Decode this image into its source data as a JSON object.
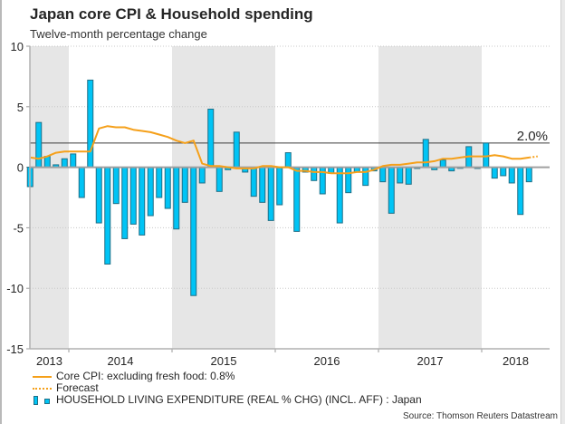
{
  "chart_data": {
    "type": "bar",
    "title": "Japan core CPI & Household spending",
    "subtitle": "Twelve-month percentage change",
    "xlabel": "",
    "ylabel": "",
    "ylim": [
      -15,
      10
    ],
    "yticks": [
      10,
      5,
      0,
      -5,
      -10,
      -15
    ],
    "ytick_labels": [
      "10",
      "5",
      "0",
      "-5",
      "-10",
      "-15"
    ],
    "grid": true,
    "x_start": "2013-08",
    "x_end": "2018-08",
    "years": [
      {
        "label": "2013",
        "shaded": true
      },
      {
        "label": "2014",
        "shaded": false
      },
      {
        "label": "2015",
        "shaded": true
      },
      {
        "label": "2016",
        "shaded": false
      },
      {
        "label": "2017",
        "shaded": true
      },
      {
        "label": "2018",
        "shaded": false
      }
    ],
    "months": [
      "2013-08",
      "2013-09",
      "2013-10",
      "2013-11",
      "2013-12",
      "2014-01",
      "2014-02",
      "2014-03",
      "2014-04",
      "2014-05",
      "2014-06",
      "2014-07",
      "2014-08",
      "2014-09",
      "2014-10",
      "2014-11",
      "2014-12",
      "2015-01",
      "2015-02",
      "2015-03",
      "2015-04",
      "2015-05",
      "2015-06",
      "2015-07",
      "2015-08",
      "2015-09",
      "2015-10",
      "2015-11",
      "2015-12",
      "2016-01",
      "2016-02",
      "2016-03",
      "2016-04",
      "2016-05",
      "2016-06",
      "2016-07",
      "2016-08",
      "2016-09",
      "2016-10",
      "2016-11",
      "2016-12",
      "2017-01",
      "2017-02",
      "2017-03",
      "2017-04",
      "2017-05",
      "2017-06",
      "2017-07",
      "2017-08",
      "2017-09",
      "2017-10",
      "2017-11",
      "2017-12",
      "2018-01",
      "2018-02",
      "2018-03",
      "2018-04",
      "2018-05",
      "2018-06"
    ],
    "series": [
      {
        "name": "HOUSEHOLD LIVING EXPENDITURE (REAL % CHG) (INCL. AFF) : Japan",
        "type": "bar",
        "color": "#00c4f5",
        "edge_color": "#1f6f86",
        "values": [
          -1.6,
          3.7,
          0.9,
          0.2,
          0.7,
          1.1,
          -2.5,
          7.2,
          -4.6,
          -8.0,
          -3.0,
          -5.9,
          -4.7,
          -5.6,
          -4.0,
          -2.5,
          -3.4,
          -5.1,
          -2.9,
          -10.6,
          -1.3,
          4.8,
          -2.0,
          -0.2,
          2.9,
          -0.4,
          -2.4,
          -2.9,
          -4.4,
          -3.1,
          1.2,
          -5.3,
          -0.4,
          -1.1,
          -2.2,
          -0.5,
          -4.6,
          -2.1,
          -0.4,
          -1.5,
          -0.3,
          -1.2,
          -3.8,
          -1.3,
          -1.4,
          -0.1,
          2.3,
          -0.2,
          0.6,
          -0.3,
          0.0,
          1.7,
          -0.1,
          2.0,
          -0.9,
          -0.7,
          -1.3,
          -3.9,
          -1.2
        ]
      },
      {
        "name": "Core CPI: excluding fresh food: 0.8%",
        "type": "line",
        "color": "#f5a01a",
        "values": [
          0.8,
          0.7,
          0.9,
          1.2,
          1.3,
          1.3,
          1.3,
          1.3,
          3.2,
          3.4,
          3.3,
          3.3,
          3.1,
          3.0,
          2.9,
          2.7,
          2.5,
          2.2,
          2.0,
          2.2,
          0.3,
          0.1,
          0.1,
          0.0,
          -0.1,
          -0.1,
          -0.1,
          0.1,
          0.1,
          0.0,
          0.0,
          -0.3,
          -0.3,
          -0.4,
          -0.4,
          -0.5,
          -0.5,
          -0.5,
          -0.4,
          -0.4,
          -0.2,
          0.1,
          0.2,
          0.2,
          0.3,
          0.4,
          0.4,
          0.5,
          0.7,
          0.7,
          0.8,
          0.9,
          0.9,
          0.9,
          1.0,
          0.9,
          0.7,
          0.7,
          0.8
        ]
      },
      {
        "name": "Forecast",
        "type": "line-dotted",
        "color": "#f5a01a",
        "months": [
          "2018-06",
          "2018-07"
        ],
        "values": [
          0.8,
          0.9
        ]
      }
    ],
    "reference_line": {
      "value": 2.0,
      "label": "2.0%"
    },
    "legend": {
      "placement": "bottom-left",
      "entries": [
        "Core CPI: excluding fresh food: 0.8%",
        "Forecast",
        "HOUSEHOLD LIVING EXPENDITURE (REAL % CHG) (INCL. AFF) : Japan"
      ]
    },
    "source": "Source: Thomson Reuters Datastream"
  }
}
